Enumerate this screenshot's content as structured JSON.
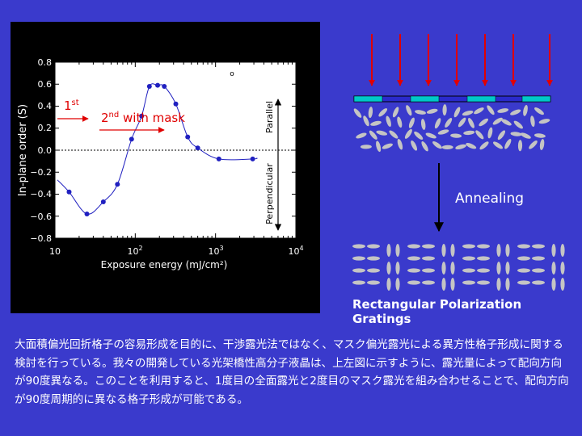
{
  "chart_data": {
    "type": "scatter",
    "xlabel": "Exposure energy (mJ/cm²)",
    "ylabel": "In-plane order (S)",
    "x_scale": "log",
    "xlim": [
      10,
      10000
    ],
    "ylim": [
      -0.8,
      0.8
    ],
    "x_ticks": [
      {
        "base": "10",
        "exp": ""
      },
      {
        "base": "10",
        "exp": "2"
      },
      {
        "base": "10",
        "exp": "3"
      },
      {
        "base": "10",
        "exp": "4"
      }
    ],
    "y_ticks": [
      "0.8",
      "0.6",
      "0.4",
      "0.2",
      "0.0",
      "−0.2",
      "−0.4",
      "−0.6",
      "−0.8"
    ],
    "points": [
      {
        "x": 15,
        "y": -0.38
      },
      {
        "x": 25,
        "y": -0.58
      },
      {
        "x": 40,
        "y": -0.47
      },
      {
        "x": 60,
        "y": -0.31
      },
      {
        "x": 90,
        "y": 0.1
      },
      {
        "x": 120,
        "y": 0.31
      },
      {
        "x": 150,
        "y": 0.58
      },
      {
        "x": 190,
        "y": 0.59
      },
      {
        "x": 230,
        "y": 0.58
      },
      {
        "x": 320,
        "y": 0.42
      },
      {
        "x": 450,
        "y": 0.12
      },
      {
        "x": 600,
        "y": 0.02
      },
      {
        "x": 1100,
        "y": -0.08
      },
      {
        "x": 2900,
        "y": -0.08
      }
    ],
    "zero_line": 0,
    "orientation_axis": {
      "top_label": "Parallel",
      "bottom_label": "Perpendicular"
    },
    "annotations": {
      "first": {
        "base": "1",
        "sup": "st"
      },
      "second": {
        "base": "2",
        "sup": "nd",
        "rest": " with mask"
      },
      "marker": "o"
    }
  },
  "diagram": {
    "annealing_label": "Annealing",
    "gratings_label": "Rectangular Polarization Gratings"
  },
  "caption": "大面積偏光回折格子の容易形成を目的に、干渉露光法ではなく、マスク偏光露光による異方性格子形成に関する検討を行っている。我々の開発している光架橋性高分子液晶は、上左図に示すように、露光量によって配向方向が90度異なる。このことを利用すると、1度目の全面露光と2度目のマスク露光を組み合わせることで、配向方向が90度周期的に異なる格子形成が可能である。",
  "colors": {
    "background": "#3a3acc",
    "arrow_red": "#e00000",
    "mask_cyan": "#00c8c8",
    "ellipse_gray": "#c4c4c4"
  }
}
